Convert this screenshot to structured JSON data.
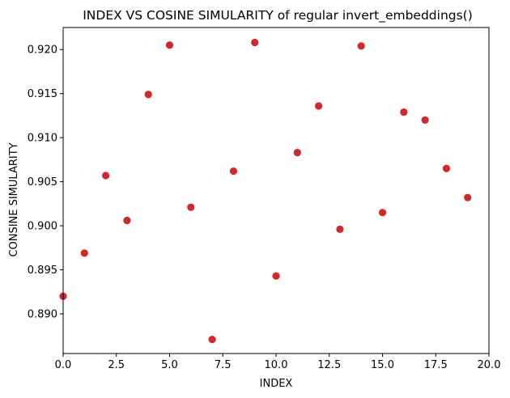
{
  "chart_data": {
    "type": "scatter",
    "title": "INDEX VS COSINE SIMULARITY of regular invert_embeddings()",
    "xlabel": "INDEX",
    "ylabel": "CONSINE SIMULARITY",
    "xlim": [
      0,
      20
    ],
    "ylim": [
      0.8855,
      0.9225
    ],
    "xticks": [
      0,
      2.5,
      5,
      7.5,
      10,
      12.5,
      15,
      17.5,
      20
    ],
    "xtick_labels": [
      "0.0",
      "2.5",
      "5.0",
      "7.5",
      "10.0",
      "12.5",
      "15.0",
      "17.5",
      "20.0"
    ],
    "yticks": [
      0.89,
      0.895,
      0.9,
      0.905,
      0.91,
      0.915,
      0.92
    ],
    "ytick_labels": [
      "0.890",
      "0.895",
      "0.900",
      "0.905",
      "0.910",
      "0.915",
      "0.920"
    ],
    "grid": false,
    "marker_color": "#d62728",
    "points": [
      {
        "x": 0,
        "y": 0.892
      },
      {
        "x": 1,
        "y": 0.8969
      },
      {
        "x": 2,
        "y": 0.9057
      },
      {
        "x": 3,
        "y": 0.9006
      },
      {
        "x": 4,
        "y": 0.9149
      },
      {
        "x": 5,
        "y": 0.9205
      },
      {
        "x": 6,
        "y": 0.9021
      },
      {
        "x": 7,
        "y": 0.8871
      },
      {
        "x": 8,
        "y": 0.9062
      },
      {
        "x": 9,
        "y": 0.9208
      },
      {
        "x": 10,
        "y": 0.8943
      },
      {
        "x": 11,
        "y": 0.9083
      },
      {
        "x": 12,
        "y": 0.9136
      },
      {
        "x": 13,
        "y": 0.8996
      },
      {
        "x": 14,
        "y": 0.9204
      },
      {
        "x": 15,
        "y": 0.9015
      },
      {
        "x": 16,
        "y": 0.9129
      },
      {
        "x": 17,
        "y": 0.912
      },
      {
        "x": 18,
        "y": 0.9065
      },
      {
        "x": 19,
        "y": 0.9032
      }
    ]
  }
}
